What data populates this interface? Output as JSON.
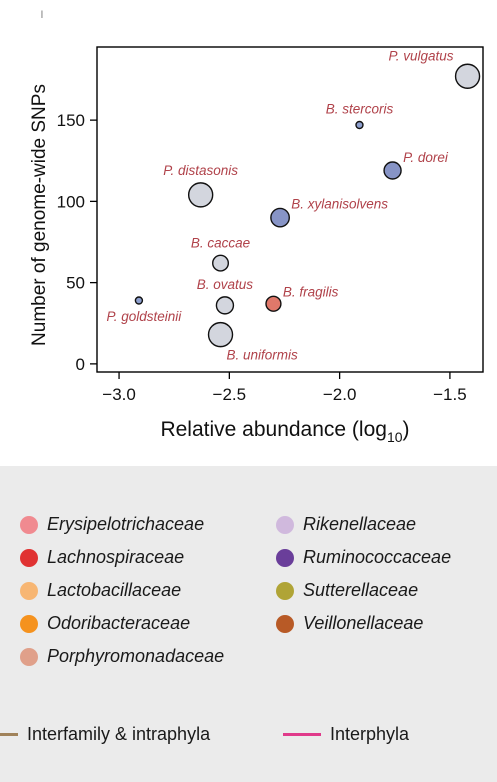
{
  "chart_data": {
    "type": "scatter",
    "xlabel": "Relative abundance (log",
    "xlabel_sub": "10",
    "xlabel_end": ")",
    "ylabel": "Number of genome-wide SNPs",
    "xlim": [
      -3.1,
      -1.35
    ],
    "ylim": [
      -5,
      195
    ],
    "xticks": [
      -3.0,
      -2.5,
      -2.0,
      -1.5
    ],
    "xtick_labels": [
      "−3.0",
      "−2.5",
      "−2.0",
      "−1.5"
    ],
    "yticks": [
      0,
      50,
      100,
      150
    ],
    "ytick_labels": [
      "0",
      "50",
      "100",
      "150"
    ],
    "points": [
      {
        "label": "P. vulgatus",
        "x": -1.42,
        "y": 177,
        "size": 3,
        "color": "#d3d6de",
        "label_pos": "left-top"
      },
      {
        "label": "B. stercoris",
        "x": -1.91,
        "y": 147,
        "size": 1,
        "color": "#8ea0cf",
        "label_pos": "top"
      },
      {
        "label": "P. dorei",
        "x": -1.76,
        "y": 119,
        "size": 2,
        "color": "#8794c6",
        "label_pos": "right-top"
      },
      {
        "label": "P. distasonis",
        "x": -2.63,
        "y": 104,
        "size": 3,
        "color": "#d3d6de",
        "label_pos": "top"
      },
      {
        "label": "B. xylanisolvens",
        "x": -2.27,
        "y": 90,
        "size": 2.2,
        "color": "#8794c6",
        "label_pos": "right-top"
      },
      {
        "label": "B. caccae",
        "x": -2.54,
        "y": 62,
        "size": 1.8,
        "color": "#d3d6de",
        "label_pos": "top"
      },
      {
        "label": "P. goldsteinii",
        "x": -2.91,
        "y": 39,
        "size": 1,
        "color": "#8ea0cf",
        "label_pos": "below"
      },
      {
        "label": "B. ovatus",
        "x": -2.52,
        "y": 36,
        "size": 2,
        "color": "#d3d6de",
        "label_pos": "top"
      },
      {
        "label": "B. fragilis",
        "x": -2.3,
        "y": 37,
        "size": 1.7,
        "color": "#e0786a",
        "label_pos": "right-top"
      },
      {
        "label": "B. uniformis",
        "x": -2.54,
        "y": 18,
        "size": 3,
        "color": "#d3d6de",
        "label_pos": "right-below"
      }
    ],
    "label_color": "#b0424a"
  },
  "legend": {
    "families": [
      {
        "name": "Erysipelotrichaceae",
        "color": "#f08a90"
      },
      {
        "name": "Lachnospiraceae",
        "color": "#e03232"
      },
      {
        "name": "Lactobacillaceae",
        "color": "#f7b673"
      },
      {
        "name": "Odoribacteraceae",
        "color": "#f5921e"
      },
      {
        "name": "Porphyromonadaceae",
        "color": "#e0a08a"
      },
      {
        "name": "Rikenellaceae",
        "color": "#d0b9dd"
      },
      {
        "name": "Ruminococcaceae",
        "color": "#6a3e9a"
      },
      {
        "name": "Sutterellaceae",
        "color": "#b0a436"
      },
      {
        "name": "Veillonellaceae",
        "color": "#b85a26"
      }
    ],
    "lines": [
      {
        "name": "Interfamily & intraphyla",
        "color": "#a0825a"
      },
      {
        "name": "Interphyla",
        "color": "#e03a8a"
      }
    ]
  }
}
